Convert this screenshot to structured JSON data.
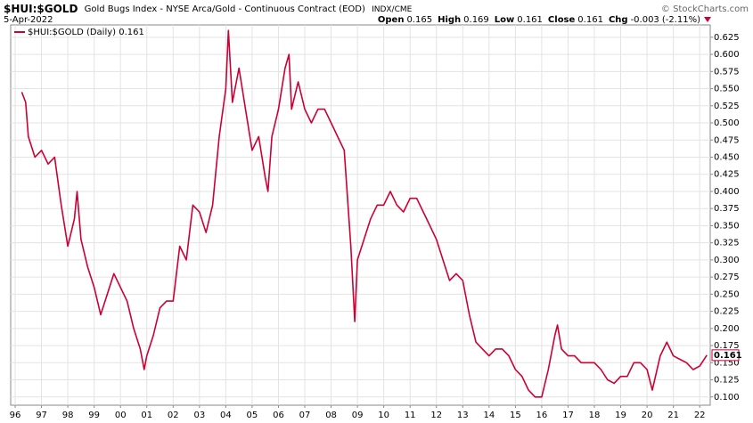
{
  "chart_data": {
    "type": "line",
    "symbol": "$HUI:$GOLD",
    "title": "Gold Bugs Index - NYSE Arca/Gold - Continuous Contract (EOD)",
    "exchange": "INDX/CME",
    "copyright": "© StockCharts.com",
    "date": "5-Apr-2022",
    "quote": [
      {
        "label": "Open",
        "value": 0.165
      },
      {
        "label": "High",
        "value": 0.169
      },
      {
        "label": "Low",
        "value": 0.161
      },
      {
        "label": "Close",
        "value": 0.161
      },
      {
        "label": "Chg",
        "value": -0.003
      }
    ],
    "chg_pct": "(-2.11%)",
    "last_value_label": "0.161",
    "xlim": [
      1995.83,
      2022.4
    ],
    "xticks": [
      {
        "value": 1996,
        "label": "96"
      },
      {
        "value": 1997,
        "label": "97"
      },
      {
        "value": 1998,
        "label": "98"
      },
      {
        "value": 1999,
        "label": "99"
      },
      {
        "value": 2000,
        "label": "00"
      },
      {
        "value": 2001,
        "label": "01"
      },
      {
        "value": 2002,
        "label": "02"
      },
      {
        "value": 2003,
        "label": "03"
      },
      {
        "value": 2004,
        "label": "04"
      },
      {
        "value": 2005,
        "label": "05"
      },
      {
        "value": 2006,
        "label": "06"
      },
      {
        "value": 2007,
        "label": "07"
      },
      {
        "value": 2008,
        "label": "08"
      },
      {
        "value": 2009,
        "label": "09"
      },
      {
        "value": 2010,
        "label": "10"
      },
      {
        "value": 2011,
        "label": "11"
      },
      {
        "value": 2012,
        "label": "12"
      },
      {
        "value": 2013,
        "label": "13"
      },
      {
        "value": 2014,
        "label": "14"
      },
      {
        "value": 2015,
        "label": "15"
      },
      {
        "value": 2016,
        "label": "16"
      },
      {
        "value": 2017,
        "label": "17"
      },
      {
        "value": 2018,
        "label": "18"
      },
      {
        "value": 2019,
        "label": "19"
      },
      {
        "value": 2020,
        "label": "20"
      },
      {
        "value": 2021,
        "label": "21"
      },
      {
        "value": 2022,
        "label": "22"
      }
    ],
    "ylim": [
      0.088,
      0.643
    ],
    "yticks": [
      {
        "value": 0.1,
        "label": "0.100"
      },
      0.125,
      {
        "value": 0.15,
        "label": "0.150"
      },
      0.175,
      {
        "value": 0.2,
        "label": "0.200"
      },
      0.225,
      {
        "value": 0.25,
        "label": "0.250"
      },
      0.275,
      {
        "value": 0.3,
        "label": "0.300"
      },
      0.325,
      {
        "value": 0.35,
        "label": "0.350"
      },
      0.375,
      {
        "value": 0.4,
        "label": "0.400"
      },
      0.425,
      {
        "value": 0.45,
        "label": "0.450"
      },
      0.475,
      {
        "value": 0.5,
        "label": "0.500"
      },
      0.525,
      {
        "value": 0.55,
        "label": "0.550"
      },
      0.575,
      {
        "value": 0.6,
        "label": "0.600"
      },
      0.625
    ],
    "grid": true,
    "legend": "top-left",
    "x": [
      1996.25,
      1996.4,
      1996.5,
      1996.75,
      1997.0,
      1997.25,
      1997.5,
      1997.75,
      1998.0,
      1998.25,
      1998.35,
      1998.5,
      1998.75,
      1999.0,
      1999.25,
      1999.5,
      1999.75,
      2000.0,
      2000.25,
      2000.5,
      2000.75,
      2000.9,
      2001.0,
      2001.25,
      2001.5,
      2001.75,
      2002.0,
      2002.25,
      2002.5,
      2002.75,
      2003.0,
      2003.25,
      2003.5,
      2003.75,
      2004.0,
      2004.1,
      2004.25,
      2004.5,
      2004.75,
      2005.0,
      2005.25,
      2005.5,
      2005.6,
      2005.75,
      2006.0,
      2006.25,
      2006.4,
      2006.5,
      2006.75,
      2007.0,
      2007.25,
      2007.5,
      2007.75,
      2008.0,
      2008.25,
      2008.5,
      2008.75,
      2008.9,
      2009.0,
      2009.25,
      2009.5,
      2009.75,
      2010.0,
      2010.25,
      2010.5,
      2010.75,
      2011.0,
      2011.25,
      2011.5,
      2011.75,
      2012.0,
      2012.25,
      2012.5,
      2012.75,
      2013.0,
      2013.25,
      2013.5,
      2013.75,
      2014.0,
      2014.25,
      2014.5,
      2014.75,
      2015.0,
      2015.25,
      2015.5,
      2015.75,
      2016.0,
      2016.25,
      2016.5,
      2016.6,
      2016.75,
      2017.0,
      2017.25,
      2017.5,
      2017.75,
      2018.0,
      2018.25,
      2018.5,
      2018.75,
      2019.0,
      2019.25,
      2019.5,
      2019.75,
      2020.0,
      2020.2,
      2020.5,
      2020.75,
      2021.0,
      2021.25,
      2021.5,
      2021.75,
      2022.0,
      2022.27
    ],
    "series": [
      {
        "name": "$HUI:$GOLD (Daily) 0.161",
        "color": "#cc0033",
        "values": [
          0.545,
          0.53,
          0.48,
          0.45,
          0.46,
          0.44,
          0.45,
          0.38,
          0.32,
          0.36,
          0.4,
          0.33,
          0.29,
          0.26,
          0.22,
          0.25,
          0.28,
          0.26,
          0.24,
          0.2,
          0.17,
          0.14,
          0.16,
          0.19,
          0.23,
          0.24,
          0.24,
          0.32,
          0.3,
          0.38,
          0.37,
          0.34,
          0.38,
          0.48,
          0.55,
          0.635,
          0.53,
          0.58,
          0.52,
          0.46,
          0.48,
          0.42,
          0.4,
          0.48,
          0.52,
          0.58,
          0.6,
          0.52,
          0.56,
          0.52,
          0.5,
          0.52,
          0.52,
          0.5,
          0.48,
          0.46,
          0.32,
          0.21,
          0.3,
          0.33,
          0.36,
          0.38,
          0.38,
          0.4,
          0.38,
          0.37,
          0.39,
          0.39,
          0.37,
          0.35,
          0.33,
          0.3,
          0.27,
          0.28,
          0.27,
          0.22,
          0.18,
          0.17,
          0.16,
          0.17,
          0.17,
          0.16,
          0.14,
          0.13,
          0.11,
          0.1,
          0.1,
          0.14,
          0.19,
          0.205,
          0.17,
          0.16,
          0.16,
          0.15,
          0.15,
          0.15,
          0.14,
          0.125,
          0.12,
          0.13,
          0.13,
          0.15,
          0.15,
          0.14,
          0.11,
          0.16,
          0.18,
          0.16,
          0.155,
          0.15,
          0.14,
          0.145,
          0.161
        ]
      }
    ]
  }
}
